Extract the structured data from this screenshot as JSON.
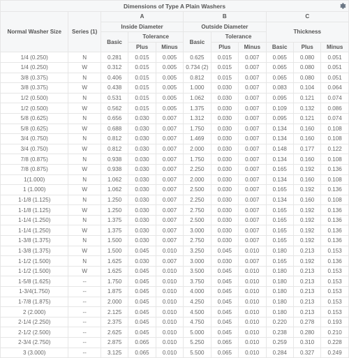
{
  "title": "Dimensions of Type A Plain Washers",
  "header": {
    "normal_washer_size": "Normal Washer Size",
    "series": "Series (1)",
    "groupA": "A",
    "groupB": "B",
    "groupC": "C",
    "inside_diameter": "Inside Diameter",
    "outside_diameter": "Outside Diameter",
    "thickness": "Thickness",
    "basic": "Basic",
    "tolerance": "Tolerance",
    "plus": "Plus",
    "minus": "Minus"
  },
  "colors": {
    "header_bg": "#f6f7f8",
    "border": "#e6e6e6",
    "text": "#555555"
  },
  "rows": [
    {
      "s": "1/4 (0.250)",
      "r": "N",
      "ab": "0.281",
      "ap": "0.015",
      "am": "0.005",
      "bb": "0.625",
      "bp": "0.015",
      "bm": "0.007",
      "cb": "0.065",
      "cp": "0.080",
      "cm": "0.051"
    },
    {
      "s": "1/4 (0.250)",
      "r": "W",
      "ab": "0.312",
      "ap": "0.015",
      "am": "0.005",
      "bb": "0.734 (2)",
      "bp": "0.015",
      "bm": "0.007",
      "cb": "0.065",
      "cp": "0.080",
      "cm": "0.051"
    },
    {
      "s": "3/8 (0.375)",
      "r": "N",
      "ab": "0.406",
      "ap": "0.015",
      "am": "0.005",
      "bb": "0.812",
      "bp": "0.015",
      "bm": "0.007",
      "cb": "0.065",
      "cp": "0.080",
      "cm": "0.051"
    },
    {
      "s": "3/8 (0.375)",
      "r": "W",
      "ab": "0.438",
      "ap": "0.015",
      "am": "0.005",
      "bb": "1.000",
      "bp": "0.030",
      "bm": "0.007",
      "cb": "0.083",
      "cp": "0.104",
      "cm": "0.064"
    },
    {
      "s": "1/2 (0.500)",
      "r": "N",
      "ab": "0.531",
      "ap": "0.015",
      "am": "0.005",
      "bb": "1.062",
      "bp": "0.030",
      "bm": "0.007",
      "cb": "0.095",
      "cp": "0.121",
      "cm": "0.074"
    },
    {
      "s": "1/2 (0.500)",
      "r": "W",
      "ab": "0.562",
      "ap": "0.015",
      "am": "0.005",
      "bb": "1.375",
      "bp": "0.030",
      "bm": "0.007",
      "cb": "0.109",
      "cp": "0.132",
      "cm": "0.086"
    },
    {
      "s": "5/8 (0.625)",
      "r": "N",
      "ab": "0.656",
      "ap": "0.030",
      "am": "0.007",
      "bb": "1.312",
      "bp": "0.030",
      "bm": "0.007",
      "cb": "0.095",
      "cp": "0.121",
      "cm": "0.074"
    },
    {
      "s": "5/8 (0.625)",
      "r": "W",
      "ab": "0.688",
      "ap": "0.030",
      "am": "0.007",
      "bb": "1.750",
      "bp": "0.030",
      "bm": "0.007",
      "cb": "0.134",
      "cp": "0.160",
      "cm": "0.108"
    },
    {
      "s": "3/4 (0.750)",
      "r": "N",
      "ab": "0.812",
      "ap": "0.030",
      "am": "0.007",
      "bb": "1.469",
      "bp": "0.030",
      "bm": "0.007",
      "cb": "0.134",
      "cp": "0.160",
      "cm": "0.108"
    },
    {
      "s": "3/4 (0.750)",
      "r": "W",
      "ab": "0.812",
      "ap": "0.030",
      "am": "0.007",
      "bb": "2.000",
      "bp": "0.030",
      "bm": "0.007",
      "cb": "0.148",
      "cp": "0.177",
      "cm": "0.122"
    },
    {
      "s": "7/8 (0.875)",
      "r": "N",
      "ab": "0.938",
      "ap": "0.030",
      "am": "0.007",
      "bb": "1.750",
      "bp": "0.030",
      "bm": "0.007",
      "cb": "0.134",
      "cp": "0.160",
      "cm": "0.108"
    },
    {
      "s": "7/8 (0.875)",
      "r": "W",
      "ab": "0.938",
      "ap": "0.030",
      "am": "0.007",
      "bb": "2.250",
      "bp": "0.030",
      "bm": "0.007",
      "cb": "0.165",
      "cp": "0.192",
      "cm": "0.136"
    },
    {
      "s": "1(1.000)",
      "r": "N",
      "ab": "1.062",
      "ap": "0.030",
      "am": "0.007",
      "bb": "2.000",
      "bp": "0.030",
      "bm": "0.007",
      "cb": "0.134",
      "cp": "0.160",
      "cm": "0.108"
    },
    {
      "s": "1 (1.000)",
      "r": "W",
      "ab": "1.062",
      "ap": "0.030",
      "am": "0.007",
      "bb": "2.500",
      "bp": "0.030",
      "bm": "0.007",
      "cb": "0.165",
      "cp": "0.192",
      "cm": "0.136"
    },
    {
      "s": "1-1/8 (1.125)",
      "r": "N",
      "ab": "1.250",
      "ap": "0.030",
      "am": "0.007",
      "bb": "2.250",
      "bp": "0.030",
      "bm": "0.007",
      "cb": "0.134",
      "cp": "0.160",
      "cm": "0.108"
    },
    {
      "s": "1-1/8 (1.125)",
      "r": "W",
      "ab": "1.250",
      "ap": "0.030",
      "am": "0.007",
      "bb": "2.750",
      "bp": "0.030",
      "bm": "0.007",
      "cb": "0.165",
      "cp": "0.192",
      "cm": "0.136"
    },
    {
      "s": "1-1/4 (1.250)",
      "r": "N",
      "ab": "1.375",
      "ap": "0.030",
      "am": "0.007",
      "bb": "2.500",
      "bp": "0.030",
      "bm": "0.007",
      "cb": "0.165",
      "cp": "0.192",
      "cm": "0.136"
    },
    {
      "s": "1-1/4 (1.250)",
      "r": "W",
      "ab": "1.375",
      "ap": "0.030",
      "am": "0.007",
      "bb": "3.000",
      "bp": "0.030",
      "bm": "0.007",
      "cb": "0.165",
      "cp": "0.192",
      "cm": "0.136"
    },
    {
      "s": "1-3/8 (1.375)",
      "r": "N",
      "ab": "1.500",
      "ap": "0.030",
      "am": "0.007",
      "bb": "2.750",
      "bp": "0.030",
      "bm": "0.007",
      "cb": "0.165",
      "cp": "0.192",
      "cm": "0.136"
    },
    {
      "s": "1-3/8 (1.375)",
      "r": "W",
      "ab": "1.500",
      "ap": "0.045",
      "am": "0.010",
      "bb": "3.250",
      "bp": "0.045",
      "bm": "0.010",
      "cb": "0.180",
      "cp": "0.213",
      "cm": "0.153"
    },
    {
      "s": "1-1/2 (1.500)",
      "r": "N",
      "ab": "1.625",
      "ap": "0.030",
      "am": "0.007",
      "bb": "3.000",
      "bp": "0.030",
      "bm": "0.007",
      "cb": "0.165",
      "cp": "0.192",
      "cm": "0.136"
    },
    {
      "s": "1-1/2 (1.500)",
      "r": "W",
      "ab": "1.625",
      "ap": "0.045",
      "am": "0.010",
      "bb": "3.500",
      "bp": "0.045",
      "bm": "0.010",
      "cb": "0.180",
      "cp": "0.213",
      "cm": "0.153"
    },
    {
      "s": "1-5/8 (1.625)",
      "r": "--",
      "ab": "1.750",
      "ap": "0.045",
      "am": "0.010",
      "bb": "3.750",
      "bp": "0.045",
      "bm": "0.010",
      "cb": "0.180",
      "cp": "0.213",
      "cm": "0.153"
    },
    {
      "s": "1-3/4(1.750)",
      "r": "--",
      "ab": "1.875",
      "ap": "0.045",
      "am": "0.010",
      "bb": "4.000",
      "bp": "0.045",
      "bm": "0.010",
      "cb": "0.180",
      "cp": "0.213",
      "cm": "0.153"
    },
    {
      "s": "1-7/8 (1.875)",
      "r": "--",
      "ab": "2.000",
      "ap": "0.045",
      "am": "0.010",
      "bb": "4.250",
      "bp": "0.045",
      "bm": "0.010",
      "cb": "0.180",
      "cp": "0.213",
      "cm": "0.153"
    },
    {
      "s": "2 (2.000)",
      "r": "--",
      "ab": "2.125",
      "ap": "0.045",
      "am": "0.010",
      "bb": "4.500",
      "bp": "0.045",
      "bm": "0.010",
      "cb": "0.180",
      "cp": "0.213",
      "cm": "0.153"
    },
    {
      "s": "2-1/4 (2.250)",
      "r": "--",
      "ab": "2.375",
      "ap": "0.045",
      "am": "0.010",
      "bb": "4.750",
      "bp": "0.045",
      "bm": "0.010",
      "cb": "0.220",
      "cp": "0.278",
      "cm": "0.193"
    },
    {
      "s": "2-1/2 (2.500)",
      "r": "--",
      "ab": "2.625",
      "ap": "0.045",
      "am": "0.010",
      "bb": "5.000",
      "bp": "0.045",
      "bm": "0.010",
      "cb": "0.238",
      "cp": "0.280",
      "cm": "0.210"
    },
    {
      "s": "2-3/4 (2.750)",
      "r": "--",
      "ab": "2.875",
      "ap": "0.065",
      "am": "0.010",
      "bb": "5.250",
      "bp": "0.065",
      "bm": "0.010",
      "cb": "0.259",
      "cp": "0.310",
      "cm": "0.228"
    },
    {
      "s": "3 (3.000)",
      "r": "--",
      "ab": "3.125",
      "ap": "0.065",
      "am": "0.010",
      "bb": "5.500",
      "bp": "0.065",
      "bm": "0.010",
      "cb": "0.284",
      "cp": "0.327",
      "cm": "0.249"
    }
  ]
}
